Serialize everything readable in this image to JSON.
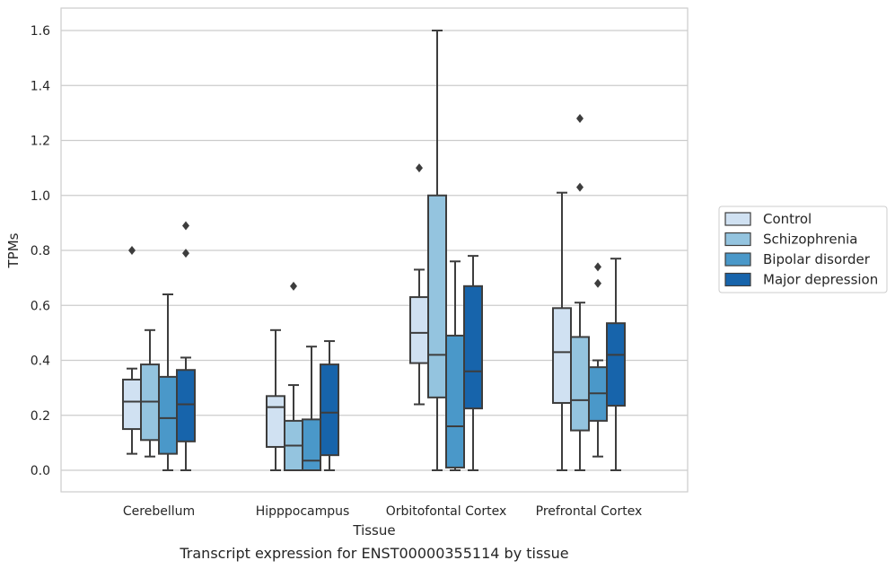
{
  "chart_data": {
    "type": "box",
    "xlabel": "Tissue",
    "ylabel": "TPMs",
    "caption": "Transcript expression for ENST00000355114 by tissue",
    "ylim": [
      -0.08,
      1.68
    ],
    "yticks": [
      0.0,
      0.2,
      0.4,
      0.6,
      0.8,
      1.0,
      1.2,
      1.4,
      1.6
    ],
    "ytick_labels": [
      "0.0",
      "0.2",
      "0.4",
      "0.6",
      "0.8",
      "1.0",
      "1.2",
      "1.4",
      "1.6"
    ],
    "grid": "horizontal",
    "legend_position": "right",
    "categories": [
      "Cerebellum",
      "Hipppocampus",
      "Orbitofontal Cortex",
      "Prefrontal Cortex"
    ],
    "series": [
      {
        "name": "Control",
        "color": "#d0e1f2",
        "boxes": [
          {
            "whislo": 0.06,
            "q1": 0.15,
            "med": 0.25,
            "q3": 0.33,
            "whishi": 0.37,
            "fliers": [
              0.8
            ]
          },
          {
            "whislo": 0.0,
            "q1": 0.085,
            "med": 0.23,
            "q3": 0.27,
            "whishi": 0.51,
            "fliers": []
          },
          {
            "whislo": 0.24,
            "q1": 0.39,
            "med": 0.5,
            "q3": 0.63,
            "whishi": 0.73,
            "fliers": [
              1.1
            ]
          },
          {
            "whislo": 0.0,
            "q1": 0.245,
            "med": 0.43,
            "q3": 0.59,
            "whishi": 1.01,
            "fliers": []
          }
        ]
      },
      {
        "name": "Schizophrenia",
        "color": "#94c4df",
        "boxes": [
          {
            "whislo": 0.05,
            "q1": 0.11,
            "med": 0.25,
            "q3": 0.385,
            "whishi": 0.51,
            "fliers": []
          },
          {
            "whislo": 0.0,
            "q1": 0.0,
            "med": 0.09,
            "q3": 0.18,
            "whishi": 0.31,
            "fliers": [
              0.67
            ]
          },
          {
            "whislo": 0.0,
            "q1": 0.265,
            "med": 0.42,
            "q3": 1.0,
            "whishi": 1.6,
            "fliers": []
          },
          {
            "whislo": 0.0,
            "q1": 0.145,
            "med": 0.255,
            "q3": 0.485,
            "whishi": 0.61,
            "fliers": [
              1.03,
              1.28
            ]
          }
        ]
      },
      {
        "name": "Bipolar disorder",
        "color": "#4a98c9",
        "boxes": [
          {
            "whislo": 0.0,
            "q1": 0.06,
            "med": 0.19,
            "q3": 0.34,
            "whishi": 0.64,
            "fliers": []
          },
          {
            "whislo": 0.0,
            "q1": 0.0,
            "med": 0.035,
            "q3": 0.185,
            "whishi": 0.45,
            "fliers": []
          },
          {
            "whislo": 0.0,
            "q1": 0.01,
            "med": 0.16,
            "q3": 0.49,
            "whishi": 0.76,
            "fliers": []
          },
          {
            "whislo": 0.05,
            "q1": 0.18,
            "med": 0.28,
            "q3": 0.375,
            "whishi": 0.4,
            "fliers": [
              0.68,
              0.74
            ]
          }
        ]
      },
      {
        "name": "Major depression",
        "color": "#1764ab",
        "boxes": [
          {
            "whislo": 0.0,
            "q1": 0.105,
            "med": 0.24,
            "q3": 0.365,
            "whishi": 0.41,
            "fliers": [
              0.79,
              0.89
            ]
          },
          {
            "whislo": 0.0,
            "q1": 0.055,
            "med": 0.21,
            "q3": 0.385,
            "whishi": 0.47,
            "fliers": []
          },
          {
            "whislo": 0.0,
            "q1": 0.225,
            "med": 0.36,
            "q3": 0.67,
            "whishi": 0.78,
            "fliers": []
          },
          {
            "whislo": 0.0,
            "q1": 0.235,
            "med": 0.42,
            "q3": 0.535,
            "whishi": 0.77,
            "fliers": []
          }
        ]
      }
    ]
  }
}
